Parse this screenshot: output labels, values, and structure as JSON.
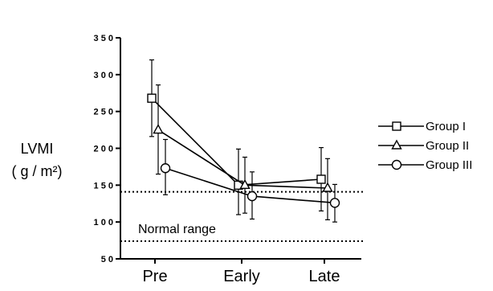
{
  "chart_data": {
    "type": "line",
    "title": "",
    "xlabel": "",
    "ylabel": "LVMI",
    "ylabel_unit": "( g / m²)",
    "categories": [
      "Pre",
      "Early",
      "Late"
    ],
    "ylim": [
      50,
      350
    ],
    "yticks": [
      50,
      100,
      150,
      200,
      250,
      300,
      350
    ],
    "series": [
      {
        "name": "Group I",
        "marker": "square",
        "values": [
          268,
          150,
          158
        ],
        "error": [
          [
            216,
            320
          ],
          [
            110,
            199
          ],
          [
            115,
            201
          ]
        ]
      },
      {
        "name": "Group II",
        "marker": "triangle",
        "values": [
          225,
          150,
          146
        ],
        "error": [
          [
            165,
            286
          ],
          [
            112,
            188
          ],
          [
            103,
            186
          ]
        ]
      },
      {
        "name": "Group III",
        "marker": "circle",
        "values": [
          173,
          135,
          126
        ],
        "error": [
          [
            137,
            212
          ],
          [
            104,
            168
          ],
          [
            100,
            151
          ]
        ]
      }
    ],
    "reference_lines": [
      {
        "y": 141,
        "style": "dotted",
        "label": ""
      },
      {
        "y": 74,
        "style": "dotted",
        "label": "Normal range"
      }
    ],
    "legend_position": "right",
    "grid": false
  }
}
